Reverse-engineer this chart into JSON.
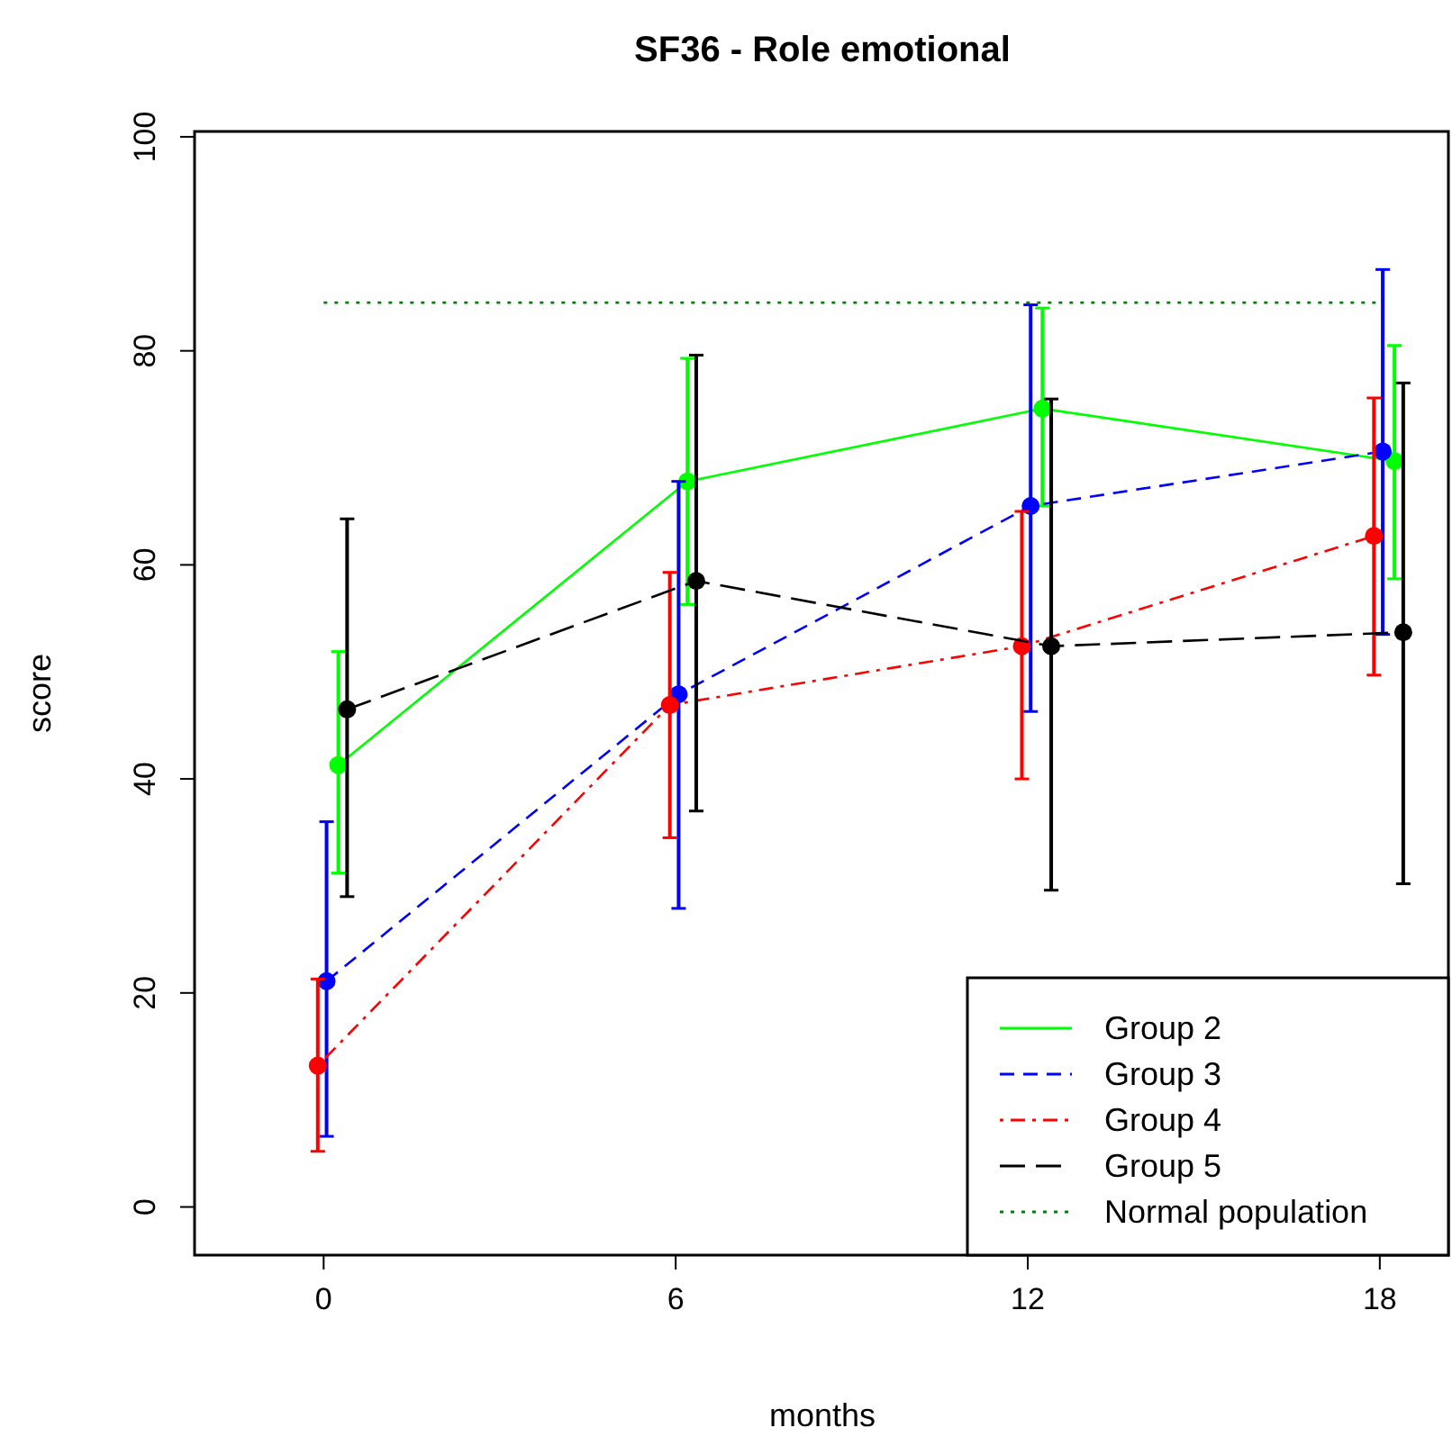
{
  "chart_data": {
    "type": "line",
    "title": "SF36 -  Role emotional",
    "xlabel": "months",
    "ylabel": "score",
    "xlim": [
      -2.2,
      19.2
    ],
    "xticks": [
      0,
      6,
      12,
      18
    ],
    "ylim": [
      -4.5,
      100.5
    ],
    "yticks": [
      0,
      20,
      40,
      60,
      80,
      100
    ],
    "marker": "circle",
    "legend": "bottom right",
    "grid": false,
    "series": [
      {
        "name": "Group 2",
        "color": "#00ff00",
        "line_style": "solid",
        "x": [
          0.25,
          6.2,
          12.25,
          18.25
        ],
        "values": [
          41.3,
          67.8,
          74.6,
          69.7
        ],
        "errors": [
          [
            31.2,
            51.9
          ],
          [
            56.3,
            79.3
          ],
          [
            65.5,
            84
          ],
          [
            58.7,
            80.5
          ]
        ]
      },
      {
        "name": "Group 3",
        "color": "#0000ff",
        "line_style": "dashed",
        "x": [
          0.05,
          6.05,
          12.05,
          18.05
        ],
        "values": [
          21.1,
          47.9,
          65.5,
          70.6
        ],
        "errors": [
          [
            6.6,
            36
          ],
          [
            27.9,
            67.8
          ],
          [
            46.3,
            84.3
          ],
          [
            53.5,
            87.6
          ]
        ]
      },
      {
        "name": "Group 4",
        "color": "#ff0000",
        "line_style": "dashdot",
        "x": [
          -0.1,
          5.9,
          11.9,
          17.9
        ],
        "values": [
          13.2,
          46.9,
          52.4,
          62.7
        ],
        "errors": [
          [
            5.2,
            21.3
          ],
          [
            34.5,
            59.3
          ],
          [
            40,
            65
          ],
          [
            49.7,
            75.6
          ]
        ]
      },
      {
        "name": "Group 5",
        "color": "#000000",
        "line_style": "longdash",
        "x": [
          0.4,
          6.35,
          12.4,
          18.4
        ],
        "values": [
          46.5,
          58.5,
          52.4,
          53.7
        ],
        "errors": [
          [
            29,
            64.3
          ],
          [
            37,
            79.6
          ],
          [
            29.6,
            75.5
          ],
          [
            30.2,
            77
          ]
        ]
      },
      {
        "name": "Normal population",
        "color": "#008000",
        "line_style": "dotted",
        "marker": "none",
        "x": [
          0,
          18
        ],
        "values": [
          84.5,
          84.5
        ]
      }
    ]
  }
}
